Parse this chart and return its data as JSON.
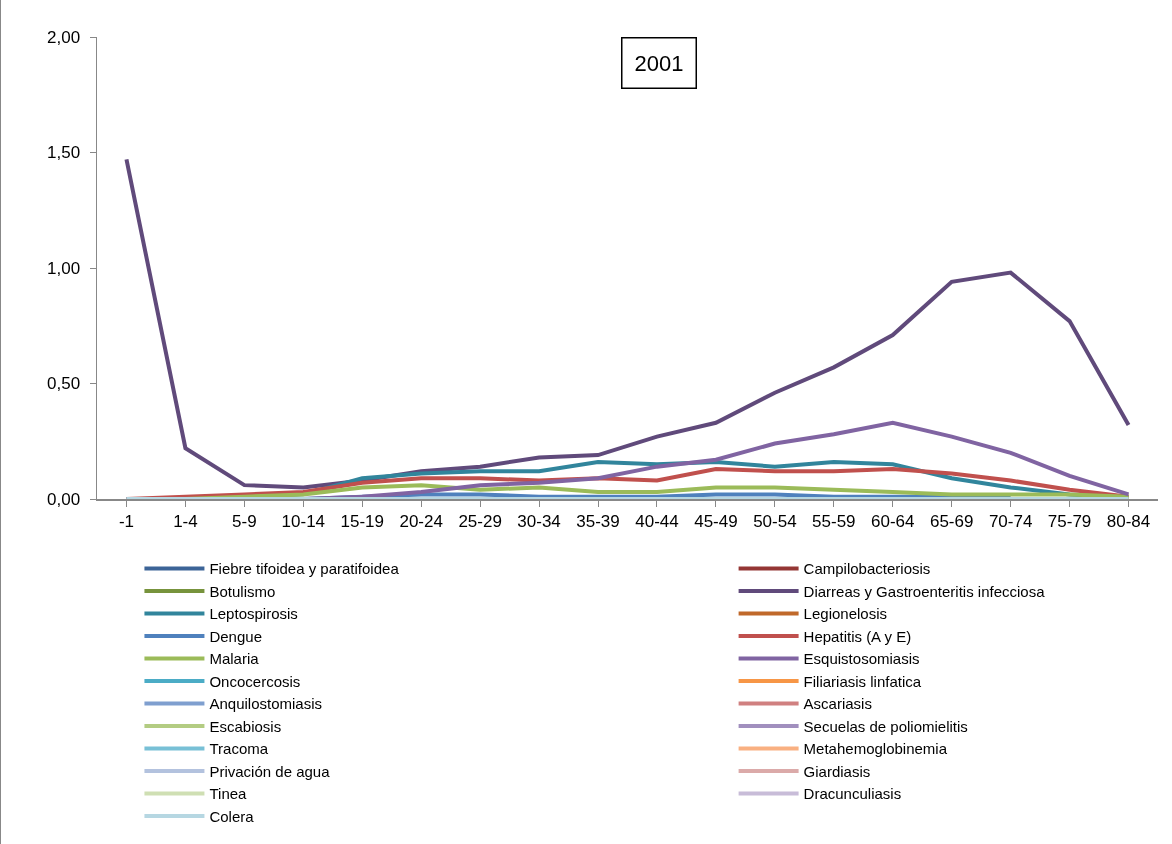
{
  "chart_data": {
    "type": "line",
    "title": "2001",
    "categories": [
      "-1",
      "1-4",
      "5-9",
      "10-14",
      "15-19",
      "20-24",
      "25-29",
      "30-34",
      "35-39",
      "40-44",
      "45-49",
      "50-54",
      "55-59",
      "60-64",
      "65-69",
      "70-74",
      "75-79",
      "80-84"
    ],
    "ylim": [
      0,
      2
    ],
    "yticks": [
      {
        "value": 0,
        "label": "0,00"
      },
      {
        "value": 0.5,
        "label": "0,50"
      },
      {
        "value": 1,
        "label": "1,00"
      },
      {
        "value": 1.5,
        "label": "1,50"
      },
      {
        "value": 2,
        "label": "2,00"
      }
    ],
    "grid": false,
    "legend": "bottom",
    "marker": "none",
    "line_style": "solid",
    "series": [
      {
        "name": "Fiebre tifoidea y paratifoidea",
        "color": "#3c6497",
        "values": [
          null,
          null,
          null,
          null,
          null,
          null,
          null,
          null,
          null,
          null,
          null,
          null,
          null,
          null,
          null,
          null,
          null,
          null
        ]
      },
      {
        "name": "Campilobacteriosis",
        "color": "#943634",
        "values": [
          null,
          null,
          null,
          null,
          null,
          null,
          null,
          null,
          null,
          null,
          null,
          null,
          null,
          null,
          null,
          null,
          null,
          null
        ]
      },
      {
        "name": "Botulismo",
        "color": "#77933c",
        "values": [
          null,
          null,
          null,
          null,
          null,
          null,
          null,
          null,
          null,
          null,
          null,
          null,
          null,
          null,
          null,
          null,
          null,
          null
        ]
      },
      {
        "name": "Diarreas y Gastroenteritis infecciosa",
        "color": "#604a7b",
        "values": [
          1.47,
          0.22,
          0.06,
          0.05,
          0.08,
          0.12,
          0.14,
          0.18,
          0.19,
          0.27,
          0.33,
          0.46,
          0.57,
          0.71,
          0.94,
          0.98,
          0.77,
          0.32
        ]
      },
      {
        "name": "Leptospirosis",
        "color": "#31859c",
        "values": [
          null,
          null,
          0.01,
          0.02,
          0.09,
          0.11,
          0.12,
          0.12,
          0.16,
          0.15,
          0.16,
          0.14,
          0.16,
          0.15,
          0.09,
          0.05,
          0.02,
          0.01
        ]
      },
      {
        "name": "Legionelosis",
        "color": "#c0692a",
        "values": [
          null,
          null,
          null,
          null,
          null,
          null,
          null,
          null,
          null,
          null,
          null,
          null,
          null,
          null,
          null,
          null,
          null,
          null
        ]
      },
      {
        "name": "Dengue",
        "color": "#4f81bd",
        "values": [
          null,
          null,
          0,
          0,
          0.01,
          0.02,
          0.02,
          0.01,
          0.01,
          0.01,
          0.02,
          0.02,
          0.01,
          0.01,
          0.01,
          0.01,
          null,
          null
        ]
      },
      {
        "name": "Hepatitis (A y E)",
        "color": "#c0504d",
        "values": [
          0,
          0.01,
          0.02,
          0.03,
          0.07,
          0.09,
          0.09,
          0.08,
          0.09,
          0.08,
          0.13,
          0.12,
          0.12,
          0.13,
          0.11,
          0.08,
          0.04,
          0.01
        ]
      },
      {
        "name": "Malaria",
        "color": "#9bbb59",
        "values": [
          0,
          0,
          0.01,
          0.02,
          0.05,
          0.06,
          0.04,
          0.05,
          0.03,
          0.03,
          0.05,
          0.05,
          0.04,
          0.03,
          0.02,
          0.02,
          0.02,
          0.01
        ]
      },
      {
        "name": "Esquistosomiasis",
        "color": "#8064a2",
        "values": [
          0,
          0,
          0,
          0,
          0.01,
          0.03,
          0.06,
          0.07,
          0.09,
          0.14,
          0.17,
          0.24,
          0.28,
          0.33,
          0.27,
          0.2,
          0.1,
          0.02
        ]
      },
      {
        "name": "Oncocercosis",
        "color": "#4bacc6",
        "values": [
          null,
          null,
          null,
          null,
          null,
          null,
          null,
          null,
          null,
          null,
          null,
          null,
          null,
          null,
          null,
          null,
          null,
          null
        ]
      },
      {
        "name": "Filiariasis linfatica",
        "color": "#f79646",
        "values": [
          null,
          null,
          null,
          null,
          null,
          null,
          null,
          null,
          null,
          null,
          null,
          null,
          null,
          null,
          null,
          null,
          null,
          null
        ]
      },
      {
        "name": "Anquilostomiasis",
        "color": "#7f9fcf",
        "values": [
          null,
          null,
          null,
          null,
          null,
          null,
          null,
          null,
          null,
          null,
          null,
          null,
          null,
          null,
          null,
          null,
          null,
          null
        ]
      },
      {
        "name": "Ascariasis",
        "color": "#d08080",
        "values": [
          null,
          null,
          null,
          null,
          null,
          null,
          null,
          null,
          null,
          null,
          null,
          null,
          null,
          null,
          null,
          null,
          null,
          null
        ]
      },
      {
        "name": "Escabiosis",
        "color": "#b3cc82",
        "values": [
          null,
          null,
          null,
          null,
          null,
          null,
          null,
          null,
          null,
          null,
          null,
          null,
          null,
          null,
          null,
          null,
          null,
          null
        ]
      },
      {
        "name": "Secuelas de poliomielitis",
        "color": "#a18fbe",
        "values": [
          null,
          null,
          null,
          null,
          null,
          null,
          null,
          null,
          null,
          null,
          null,
          null,
          null,
          null,
          null,
          null,
          null,
          null
        ]
      },
      {
        "name": "Tracoma",
        "color": "#78c0d6",
        "values": [
          null,
          null,
          null,
          null,
          null,
          null,
          null,
          null,
          null,
          null,
          null,
          null,
          null,
          null,
          null,
          null,
          null,
          null
        ]
      },
      {
        "name": "Metahemoglobinemia",
        "color": "#f9b081",
        "values": [
          null,
          null,
          null,
          null,
          null,
          null,
          null,
          null,
          null,
          null,
          null,
          null,
          null,
          null,
          null,
          null,
          null,
          null
        ]
      },
      {
        "name": "Privación de agua",
        "color": "#b3c2de",
        "values": [
          null,
          null,
          null,
          null,
          null,
          null,
          null,
          null,
          null,
          null,
          null,
          null,
          null,
          null,
          null,
          null,
          null,
          null
        ]
      },
      {
        "name": "Giardiasis",
        "color": "#dbaaa9",
        "values": [
          null,
          null,
          null,
          null,
          null,
          null,
          null,
          null,
          null,
          null,
          null,
          null,
          null,
          null,
          null,
          null,
          null,
          null
        ]
      },
      {
        "name": "Tinea",
        "color": "#cfdfb3",
        "values": [
          null,
          null,
          null,
          null,
          null,
          null,
          null,
          null,
          null,
          null,
          null,
          null,
          null,
          null,
          null,
          null,
          null,
          null
        ]
      },
      {
        "name": "Dracunculiasis",
        "color": "#c8bcd8",
        "values": [
          null,
          null,
          null,
          null,
          null,
          null,
          null,
          null,
          null,
          null,
          null,
          null,
          null,
          null,
          null,
          null,
          null,
          null
        ]
      },
      {
        "name": "Colera",
        "color": "#b6d7e2",
        "values": [
          0,
          0,
          0,
          0,
          0,
          0,
          0,
          0,
          0,
          0,
          0,
          0,
          0,
          0,
          0,
          0,
          0,
          0
        ]
      }
    ]
  }
}
